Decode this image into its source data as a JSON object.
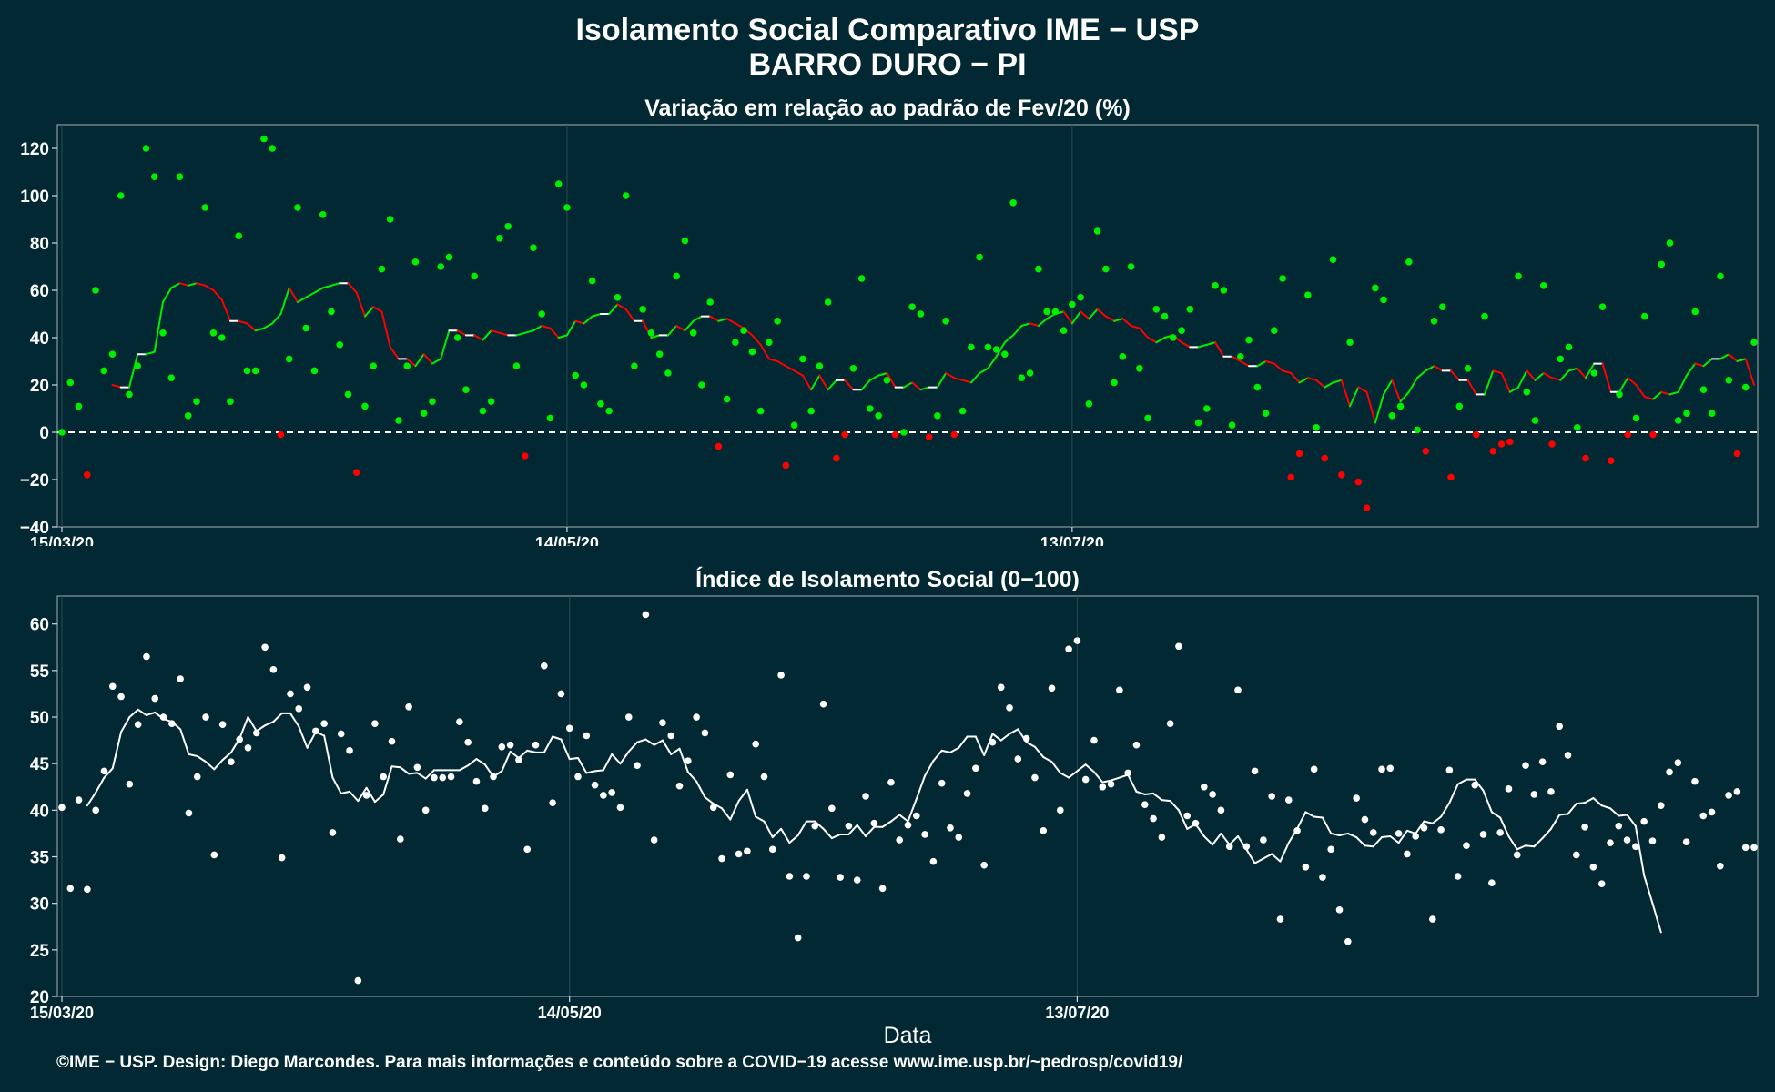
{
  "header": {
    "title": "Isolamento Social Comparativo IME − USP",
    "subtitle": "BARRO DURO − PI"
  },
  "footer": {
    "caption": "©IME − USP. Design: Diego Marcondes. Para mais informações e conteúdo sobre a COVID−19 acesse www.ime.usp.br/~pedrosp/covid19/"
  },
  "colors": {
    "background": "#022833",
    "above_zero": "#00ee00",
    "below_zero": "#ff0000",
    "index_series": "#ffffff",
    "grid": "#2b4a55"
  },
  "chart_data": [
    {
      "type": "scatter",
      "title": "Variação em relação ao padrão de Fev/20 (%)",
      "xlabel": "",
      "ylabel": "",
      "x_type": "date",
      "x_start": "15/03/20",
      "x_ticks": [
        "15/03/20",
        "14/05/20",
        "13/07/20"
      ],
      "ylim": [
        -40,
        130
      ],
      "y_ticks": [
        -40,
        -20,
        0,
        20,
        40,
        60,
        80,
        100,
        120
      ],
      "reference_line": 0,
      "grid": true,
      "color_rule": "green when value >= 0, red when value < 0",
      "series": [
        {
          "values": [
            0,
            21,
            11,
            -18,
            60,
            26,
            33,
            100,
            16,
            28,
            120,
            108,
            42,
            23,
            108,
            7,
            13,
            95,
            42,
            40,
            13,
            83,
            26,
            26,
            124,
            120,
            -1,
            31,
            95,
            44,
            26,
            92,
            51,
            37,
            16,
            -17,
            11,
            28,
            69,
            90,
            5,
            28,
            72,
            8,
            13,
            70,
            74,
            40,
            18,
            66,
            9,
            13,
            82,
            87,
            28,
            -10,
            78,
            50,
            6,
            105,
            95,
            24,
            20,
            64,
            12,
            9,
            57,
            100,
            28,
            52,
            42,
            33,
            25,
            66,
            81,
            42,
            20,
            55,
            -6,
            14,
            38,
            43,
            34,
            9,
            38,
            47,
            -14,
            3,
            31,
            9,
            28,
            55,
            -11,
            -1,
            27,
            65,
            10,
            7,
            22,
            -1,
            0,
            53,
            50,
            -2,
            7,
            47,
            -1,
            9,
            36,
            74,
            36,
            35,
            33,
            97,
            23,
            25,
            69,
            51,
            51,
            43,
            54,
            57,
            12,
            85,
            69,
            21,
            32,
            70,
            27,
            6,
            52,
            49,
            40,
            43,
            52,
            4,
            10,
            62,
            60,
            3,
            32,
            39,
            19,
            8,
            43,
            65,
            -19,
            -9,
            58,
            2,
            -11,
            73,
            -18,
            38,
            -21,
            -32,
            61,
            56,
            7,
            11,
            72,
            1,
            -8,
            47,
            53,
            -19,
            11,
            27,
            -1,
            49,
            -8,
            -5,
            -4,
            66,
            17,
            5,
            62,
            -5,
            31,
            36,
            2,
            -11,
            25,
            53,
            -12,
            16,
            -1,
            6,
            49,
            -1,
            71,
            80,
            5,
            8,
            51,
            18,
            8,
            66,
            22,
            -9,
            19,
            38
          ],
          "moving_average": [
            null,
            null,
            null,
            null,
            null,
            null,
            20,
            19,
            19,
            33,
            33,
            34,
            55,
            61,
            63,
            62,
            63,
            62,
            60,
            56,
            47,
            47,
            46,
            43,
            44,
            46,
            50,
            61,
            55,
            57,
            59,
            61,
            62,
            63,
            63,
            59,
            49,
            53,
            51,
            36,
            31,
            31,
            28,
            33,
            29,
            31,
            43,
            43,
            41,
            41,
            39,
            43,
            42,
            41,
            41,
            42,
            43,
            45,
            44,
            40,
            41,
            47,
            46,
            49,
            50,
            50,
            54,
            52,
            47,
            47,
            40,
            41,
            41,
            45,
            43,
            47,
            49,
            49,
            47,
            48,
            46,
            44,
            41,
            37,
            31,
            30,
            28,
            26,
            24,
            18,
            24,
            18,
            22,
            22,
            18,
            18,
            22,
            24,
            25,
            19,
            19,
            21,
            18,
            19,
            19,
            25,
            23,
            22,
            21,
            25,
            27,
            32,
            38,
            41,
            45,
            46,
            45,
            48,
            50,
            51,
            46,
            51,
            48,
            52,
            49,
            47,
            48,
            45,
            44,
            40,
            38,
            40,
            41,
            38,
            36,
            36,
            37,
            38,
            32,
            32,
            30,
            28,
            28,
            30,
            29,
            26,
            25,
            21,
            23,
            22,
            19,
            21,
            22,
            11,
            19,
            17,
            4,
            16,
            22,
            13,
            17,
            23,
            26,
            28,
            26,
            26,
            22,
            22,
            16,
            16,
            26,
            25,
            17,
            19,
            26,
            22,
            25,
            23,
            22,
            26,
            27,
            23,
            29,
            29,
            17,
            17,
            23,
            20,
            15,
            14,
            17,
            16,
            17,
            24,
            29,
            28,
            31,
            31,
            33,
            30,
            31,
            20,
            19,
            23
          ]
        }
      ]
    },
    {
      "type": "scatter",
      "title": "Índice de Isolamento Social (0−100)",
      "xlabel": "Data",
      "ylabel": "",
      "x_type": "date",
      "x_start": "15/03/20",
      "x_ticks": [
        "15/03/20",
        "14/05/20",
        "13/07/20"
      ],
      "ylim": [
        20,
        63
      ],
      "y_ticks": [
        20,
        25,
        30,
        35,
        40,
        45,
        50,
        55,
        60
      ],
      "grid": true,
      "series": [
        {
          "values": [
            40.3,
            31.6,
            41.1,
            31.5,
            40.0,
            44.2,
            53.3,
            52.2,
            42.8,
            49.2,
            56.5,
            52.0,
            50.0,
            49.3,
            54.1,
            39.7,
            43.6,
            50.0,
            35.2,
            49.2,
            45.2,
            47.6,
            46.7,
            48.3,
            57.5,
            55.1,
            34.9,
            52.5,
            50.9,
            53.2,
            48.5,
            49.3,
            37.6,
            48.2,
            46.4,
            21.7,
            41.6,
            49.3,
            43.6,
            47.4,
            36.9,
            51.1,
            44.6,
            40.0,
            43.5,
            43.5,
            43.6,
            49.5,
            47.3,
            43.1,
            40.2,
            43.6,
            46.8,
            47.0,
            45.4,
            35.8,
            47.0,
            55.5,
            40.8,
            52.5,
            48.8,
            43.6,
            48.0,
            42.7,
            41.6,
            41.9,
            40.3,
            50.0,
            44.8,
            61.0,
            36.8,
            49.4,
            48.0,
            42.6,
            45.3,
            50.0,
            48.3,
            40.3,
            34.8,
            43.8,
            35.3,
            35.6,
            47.1,
            43.6,
            35.8,
            54.5,
            32.9,
            26.3,
            32.9,
            38.3,
            51.4,
            40.2,
            32.8,
            38.3,
            32.5,
            41.5,
            38.6,
            31.6,
            43.0,
            36.8,
            38.4,
            39.4,
            37.4,
            34.5,
            42.9,
            38.1,
            37.1,
            41.8,
            44.5,
            34.1,
            47.3,
            53.2,
            51.0,
            45.5,
            47.7,
            43.5,
            37.8,
            53.1,
            40.0,
            57.3,
            58.2,
            43.3,
            47.5,
            42.5,
            42.8,
            52.9,
            44.0,
            47.0,
            40.6,
            39.1,
            37.1,
            49.3,
            57.6,
            39.4,
            38.6,
            42.5,
            41.7,
            40.0,
            36.1,
            52.9,
            36.1,
            44.2,
            36.8,
            41.5,
            28.3,
            41.1,
            37.8,
            33.9,
            44.4,
            32.8,
            35.8,
            29.3,
            25.9,
            41.3,
            39.0,
            37.6,
            44.4,
            44.5,
            37.5,
            35.3,
            37.2,
            38.1,
            28.3,
            37.9,
            44.3,
            32.9,
            36.2,
            42.7,
            37.4,
            32.2,
            37.6,
            42.3,
            35.2,
            44.8,
            41.7,
            45.2,
            42.0,
            49.0,
            45.9,
            35.2,
            38.2,
            33.9,
            32.1,
            36.5,
            38.3,
            36.8,
            36.1,
            38.8,
            36.7,
            40.5,
            44.1,
            45.1,
            36.6,
            43.1,
            39.4,
            39.8,
            34.0,
            41.6,
            42.0,
            36.0,
            36.0
          ],
          "moving_average": [
            null,
            null,
            null,
            40.5,
            41.9,
            43.5,
            44.5,
            48.4,
            50.0,
            50.8,
            50.2,
            50.5,
            49.8,
            49.5,
            48.7,
            46.0,
            45.8,
            45.2,
            44.4,
            45.4,
            46.2,
            47.7,
            50.0,
            48.5,
            49.1,
            49.5,
            50.4,
            50.4,
            49.0,
            46.7,
            48.4,
            48.0,
            43.5,
            41.8,
            42.0,
            41.0,
            42.4,
            40.9,
            41.7,
            44.7,
            44.6,
            43.9,
            44.0,
            43.4,
            44.3,
            44.3,
            44.3,
            44.3,
            44.8,
            45.5,
            44.9,
            43.6,
            44.2,
            46.3,
            45.6,
            46.4,
            46.2,
            46.2,
            47.9,
            47.6,
            45.5,
            45.6,
            44.0,
            44.2,
            44.3,
            46.0,
            45.0,
            46.3,
            47.3,
            47.6,
            47.0,
            47.5,
            46.0,
            46.6,
            44.1,
            43.1,
            41.4,
            40.7,
            40.2,
            39.0,
            41.0,
            42.2,
            39.3,
            38.8,
            37.1,
            38.0,
            36.5,
            37.3,
            38.8,
            38.8,
            38.0,
            37.0,
            37.4,
            37.4,
            38.4,
            37.2,
            38.2,
            38.2,
            38.8,
            39.5,
            38.8,
            41.2,
            43.7,
            45.3,
            46.4,
            46.2,
            46.7,
            47.9,
            47.9,
            45.9,
            48.2,
            47.5,
            48.2,
            48.7,
            47.3,
            46.8,
            45.7,
            45.2,
            44.0,
            43.5,
            44.2,
            44.9,
            44.1,
            43.0,
            43.2,
            43.5,
            43.8,
            42.0,
            41.7,
            41.8,
            41.1,
            41.0,
            40.0,
            38.0,
            38.5,
            37.2,
            36.3,
            37.5,
            36.3,
            37.2,
            35.8,
            34.3,
            34.8,
            35.3,
            34.5,
            36.5,
            38.0,
            39.8,
            39.3,
            39.2,
            37.5,
            37.3,
            37.5,
            37.1,
            36.2,
            36.1,
            37.1,
            37.2,
            36.5,
            37.8,
            37.5,
            38.8,
            38.6,
            39.3,
            40.8,
            42.8,
            43.3,
            43.3,
            42.1,
            39.8,
            39.2,
            37.2,
            35.8,
            36.2,
            36.1,
            37.0,
            38.0,
            39.5,
            39.6,
            40.7,
            40.8,
            41.3,
            40.5,
            40.2,
            39.4,
            39.5,
            38.3,
            33.0,
            30.0,
            26.9
          ]
        }
      ]
    }
  ]
}
